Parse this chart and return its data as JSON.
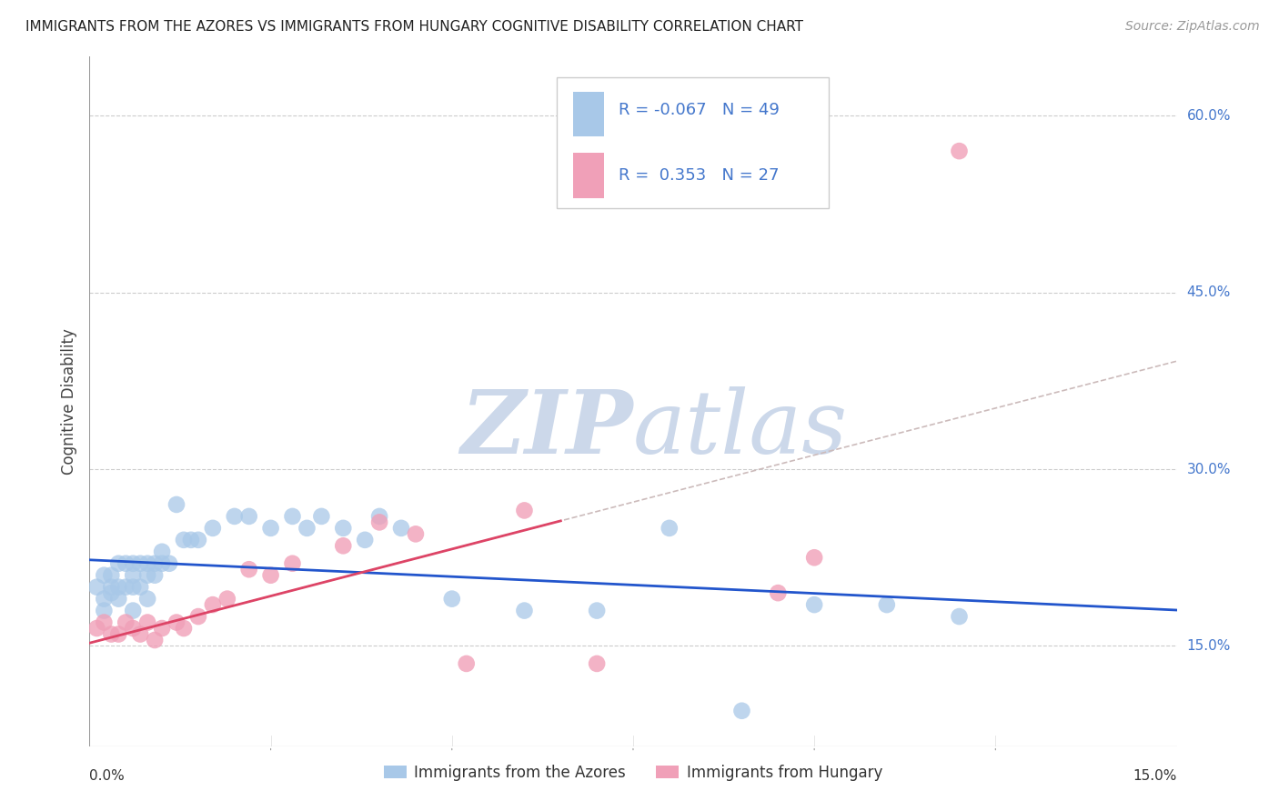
{
  "title": "IMMIGRANTS FROM THE AZORES VS IMMIGRANTS FROM HUNGARY COGNITIVE DISABILITY CORRELATION CHART",
  "source": "Source: ZipAtlas.com",
  "ylabel": "Cognitive Disability",
  "y_ticks": [
    0.15,
    0.3,
    0.45,
    0.6
  ],
  "y_tick_labels": [
    "15.0%",
    "30.0%",
    "45.0%",
    "60.0%"
  ],
  "x_range": [
    0.0,
    0.15
  ],
  "y_range": [
    0.065,
    0.65
  ],
  "legend_label1": "Immigrants from the Azores",
  "legend_label2": "Immigrants from Hungary",
  "R1": -0.067,
  "N1": 49,
  "R2": 0.353,
  "N2": 27,
  "color_azores": "#a8c8e8",
  "color_hungary": "#f0a0b8",
  "color_trend_azores": "#2255cc",
  "color_trend_hungary": "#dd4466",
  "color_dashed": "#ccbbbb",
  "color_title": "#222222",
  "color_source": "#999999",
  "color_watermark": "#ccd8ea",
  "color_tick_labels": "#4477cc",
  "azores_x": [
    0.001,
    0.002,
    0.002,
    0.003,
    0.003,
    0.004,
    0.004,
    0.005,
    0.005,
    0.006,
    0.006,
    0.006,
    0.007,
    0.007,
    0.008,
    0.008,
    0.009,
    0.009,
    0.01,
    0.01,
    0.011,
    0.012,
    0.013,
    0.014,
    0.015,
    0.017,
    0.02,
    0.022,
    0.025,
    0.028,
    0.03,
    0.032,
    0.035,
    0.038,
    0.04,
    0.043,
    0.05,
    0.06,
    0.07,
    0.08,
    0.002,
    0.004,
    0.006,
    0.008,
    0.1,
    0.11,
    0.12,
    0.09,
    0.003
  ],
  "azores_y": [
    0.2,
    0.21,
    0.19,
    0.2,
    0.21,
    0.2,
    0.22,
    0.2,
    0.22,
    0.2,
    0.21,
    0.22,
    0.2,
    0.22,
    0.21,
    0.22,
    0.21,
    0.22,
    0.22,
    0.23,
    0.22,
    0.27,
    0.24,
    0.24,
    0.24,
    0.25,
    0.26,
    0.26,
    0.25,
    0.26,
    0.25,
    0.26,
    0.25,
    0.24,
    0.26,
    0.25,
    0.19,
    0.18,
    0.18,
    0.25,
    0.18,
    0.19,
    0.18,
    0.19,
    0.185,
    0.185,
    0.175,
    0.095,
    0.195
  ],
  "hungary_x": [
    0.001,
    0.002,
    0.003,
    0.004,
    0.005,
    0.006,
    0.007,
    0.008,
    0.009,
    0.01,
    0.012,
    0.013,
    0.015,
    0.017,
    0.019,
    0.022,
    0.025,
    0.028,
    0.035,
    0.04,
    0.045,
    0.052,
    0.06,
    0.07,
    0.095,
    0.1,
    0.12
  ],
  "hungary_y": [
    0.165,
    0.17,
    0.16,
    0.16,
    0.17,
    0.165,
    0.16,
    0.17,
    0.155,
    0.165,
    0.17,
    0.165,
    0.175,
    0.185,
    0.19,
    0.215,
    0.21,
    0.22,
    0.235,
    0.255,
    0.245,
    0.135,
    0.265,
    0.135,
    0.195,
    0.225,
    0.57
  ]
}
